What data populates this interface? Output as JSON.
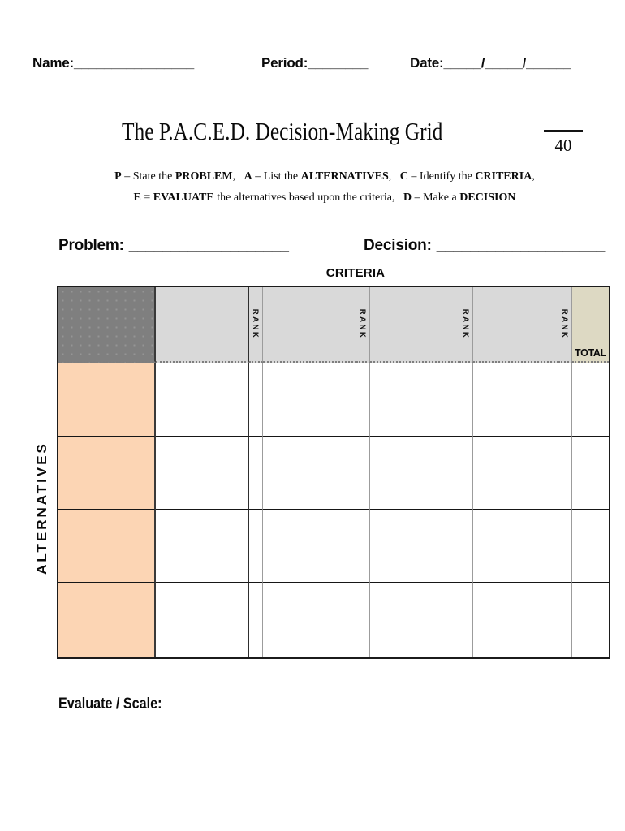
{
  "header_fields": {
    "name": {
      "label": "Name:",
      "line": "________________"
    },
    "period": {
      "label": "Period:",
      "line": "________"
    },
    "date": {
      "label": "Date:",
      "line": "_____/_____/______"
    }
  },
  "title": {
    "text": "The P.A.C.E.D. Decision-Making Grid",
    "score_total": "40"
  },
  "instructions": {
    "line1": [
      {
        "t": "P",
        "b": true
      },
      {
        "t": " – State the ",
        "b": false
      },
      {
        "t": "PROBLEM",
        "b": true
      },
      {
        "t": ",   ",
        "b": false
      },
      {
        "t": "A",
        "b": true
      },
      {
        "t": " – List the ",
        "b": false
      },
      {
        "t": "ALTERNATIVES",
        "b": true
      },
      {
        "t": ",   ",
        "b": false
      },
      {
        "t": "C",
        "b": true
      },
      {
        "t": " – Identify the ",
        "b": false
      },
      {
        "t": "CRITERIA",
        "b": true
      },
      {
        "t": ",",
        "b": false
      }
    ],
    "line2": [
      {
        "t": "E",
        "b": true
      },
      {
        "t": " = ",
        "b": false
      },
      {
        "t": "EVALUATE",
        "b": true
      },
      {
        "t": " the alternatives based upon the criteria,   ",
        "b": false
      },
      {
        "t": "D",
        "b": true
      },
      {
        "t": " – Make a ",
        "b": false
      },
      {
        "t": "DECISION",
        "b": true
      }
    ]
  },
  "prompts": {
    "problem": {
      "label": "Problem:",
      "line": "___________________"
    },
    "decision": {
      "label": "Decision:",
      "line": "____________________"
    }
  },
  "table": {
    "criteria_header": "CRITERIA",
    "alternatives_header": "ALTERNATIVES",
    "rank_label": "RANK",
    "total_label": "TOTAL",
    "criteria_columns": 4,
    "alternative_rows": 4,
    "colors": {
      "corner": "#7f7f7f",
      "criteria_header_bg": "#d9d9d9",
      "total_header_bg": "#ddd9c3",
      "alternatives_bg": "#fcd5b4"
    }
  },
  "footer": {
    "evaluate_label": "Evaluate / Scale:"
  }
}
